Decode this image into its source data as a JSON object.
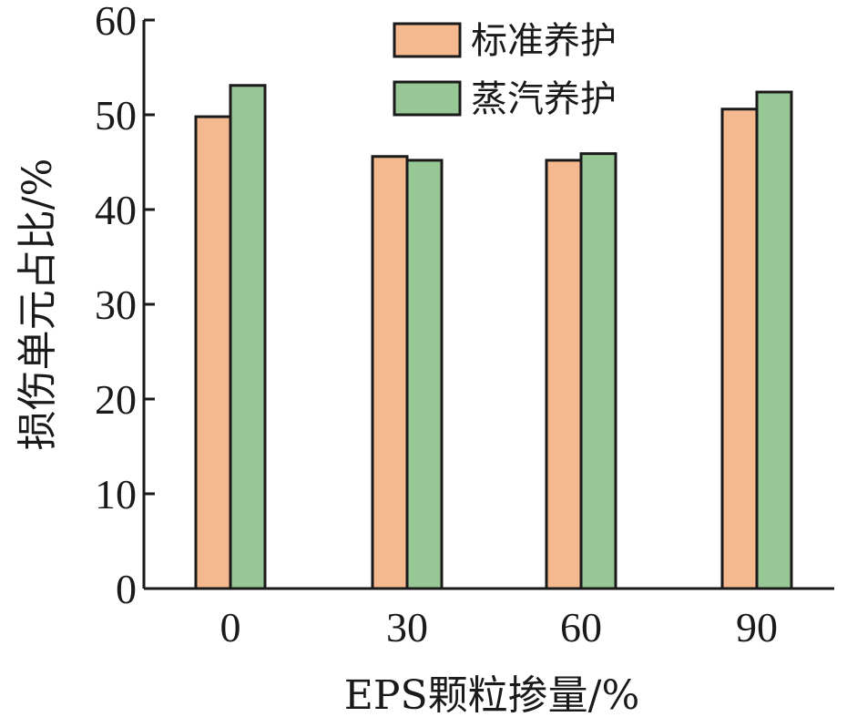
{
  "chart_data": {
    "type": "bar",
    "categories": [
      "0",
      "30",
      "60",
      "90"
    ],
    "series": [
      {
        "name": "标准养护",
        "values": [
          49.8,
          45.6,
          45.2,
          50.6
        ],
        "color": "#f5b98f"
      },
      {
        "name": "蒸汽养护",
        "values": [
          53.1,
          45.2,
          45.9,
          52.4
        ],
        "color": "#97c794"
      }
    ],
    "xlabel": "EPS颗粒掺量/%",
    "ylabel": "损伤单元占比/%",
    "ylim": [
      0,
      60
    ],
    "yticks": [
      0,
      10,
      20,
      30,
      40,
      50,
      60
    ],
    "grid": false,
    "legend_position": "top-right"
  }
}
